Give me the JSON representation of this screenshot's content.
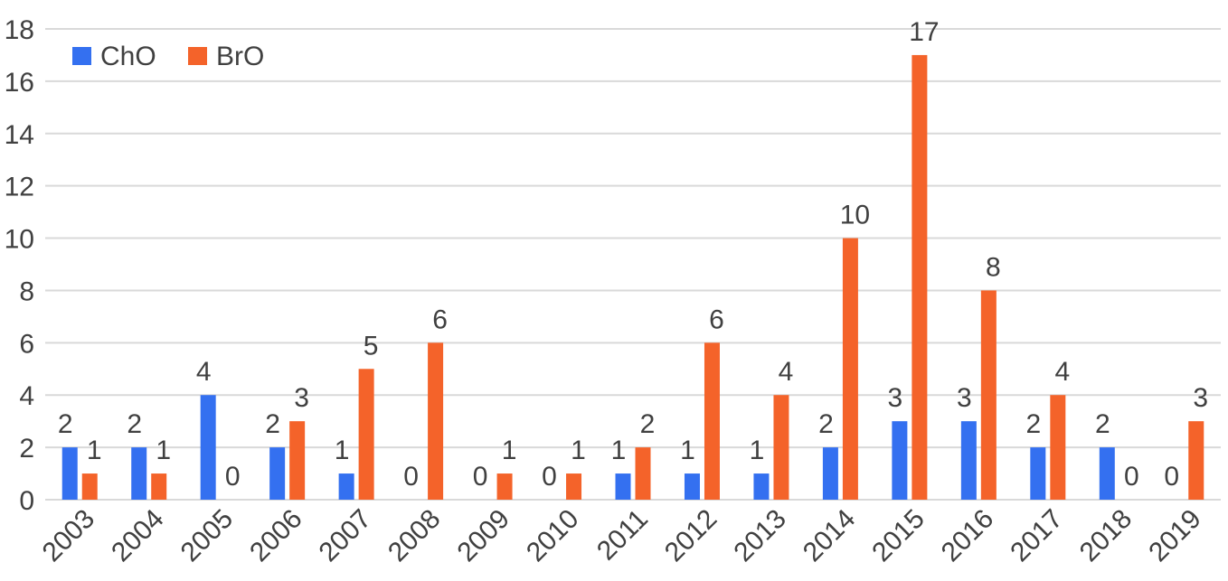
{
  "chart_data": {
    "type": "bar",
    "categories": [
      "2003",
      "2004",
      "2005",
      "2006",
      "2007",
      "2008",
      "2009",
      "2010",
      "2011",
      "2012",
      "2013",
      "2014",
      "2015",
      "2016",
      "2017",
      "2018",
      "2019"
    ],
    "series": [
      {
        "name": "ChO",
        "color": "#3470f0",
        "values": [
          2,
          2,
          4,
          2,
          1,
          0,
          0,
          0,
          1,
          1,
          1,
          2,
          3,
          3,
          2,
          2,
          0
        ]
      },
      {
        "name": "BrO",
        "color": "#f4632a",
        "values": [
          1,
          1,
          0,
          3,
          5,
          6,
          1,
          1,
          2,
          6,
          4,
          10,
          17,
          8,
          4,
          0,
          3
        ]
      }
    ],
    "ylim": [
      0,
      18
    ],
    "yticks": [
      0,
      2,
      4,
      6,
      8,
      10,
      12,
      14,
      16,
      18
    ],
    "grid": true,
    "legend": "top-left",
    "data_labels": true,
    "xlabel": "",
    "ylabel": "",
    "title": ""
  }
}
